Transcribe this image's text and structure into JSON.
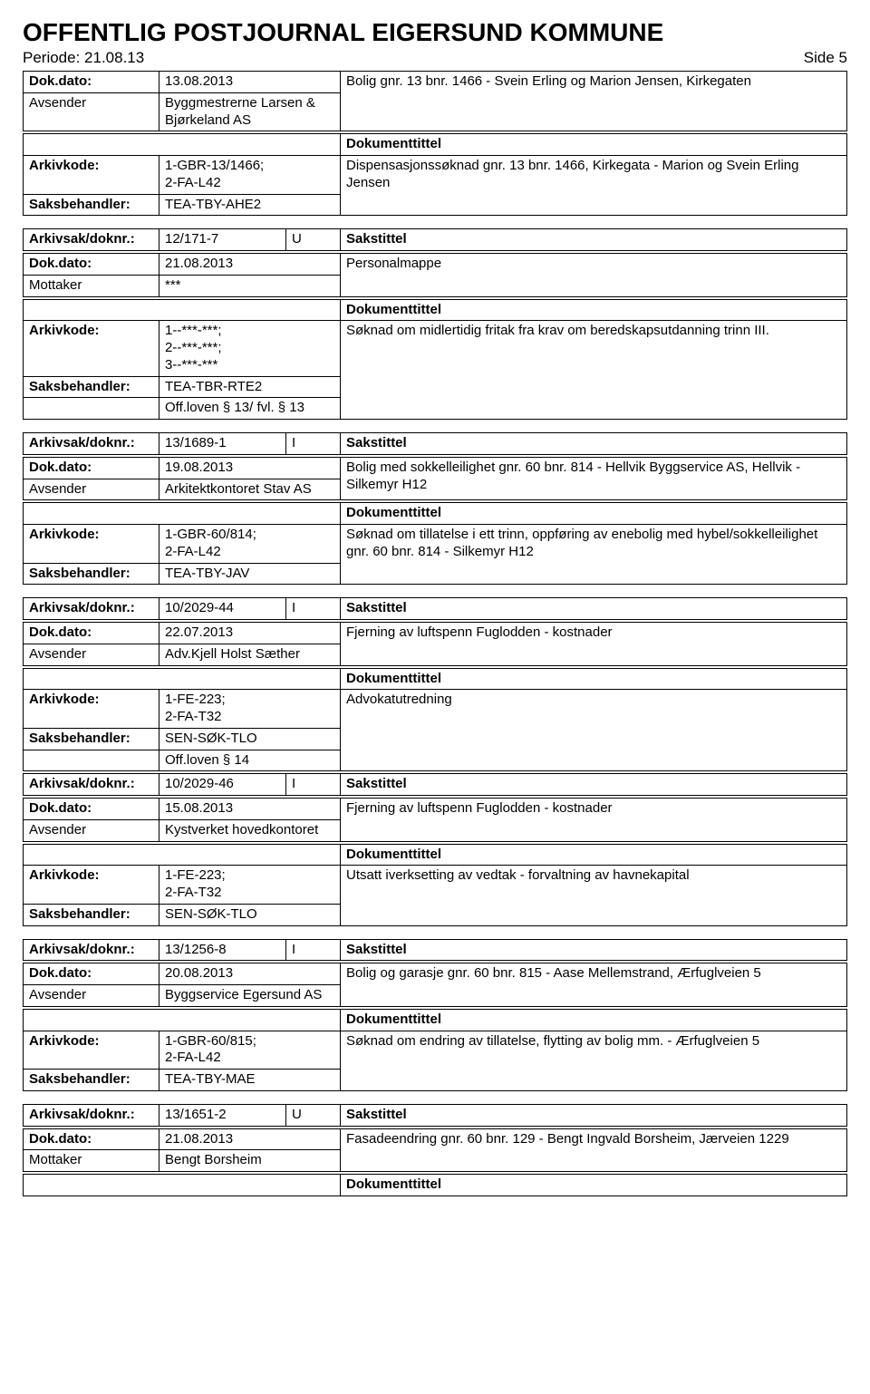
{
  "title": "OFFENTLIG POSTJOURNAL EIGERSUND KOMMUNE",
  "periode_label": "Periode: 21.08.13",
  "side_label": "Side 5",
  "labels": {
    "dokdato": "Dok.dato:",
    "avsender": "Avsender",
    "mottaker": "Mottaker",
    "arkivkode": "Arkivkode:",
    "saksbehandler": "Saksbehandler:",
    "arkivsak": "Arkivsak/doknr.:",
    "sakstittel": "Sakstittel",
    "dokumenttittel": "Dokumenttittel"
  },
  "entries": [
    {
      "head": {
        "dokdato": "13.08.2013",
        "party_label": "Avsender",
        "party_value": "Byggmestrerne Larsen & Bjørkeland AS",
        "sakstittel_text": "Bolig gnr. 13 bnr. 1466 - Svein Erling og Marion Jensen,  Kirkegaten"
      },
      "arkivkode": "1-GBR-13/1466;\n2-FA-L42",
      "saksbehandler": "TEA-TBY-AHE2",
      "doktext": "Dispensasjonssøknad gnr. 13 bnr. 1466, Kirkegata - Marion og Svein Erling Jensen",
      "offloven": null
    },
    {
      "arkivsak": "12/171-7",
      "ui": "U",
      "dokdato": "21.08.2013",
      "party_label": "Mottaker",
      "party_value": "***",
      "sakstittel_text": "Personalmappe",
      "arkivkode": "1--***-***;\n2--***-***;\n3--***-***",
      "saksbehandler": "TEA-TBR-RTE2",
      "doktext": "Søknad om midlertidig fritak fra krav om beredskapsutdanning trinn III.",
      "offloven": "Off.loven § 13/ fvl. § 13"
    },
    {
      "arkivsak": "13/1689-1",
      "ui": "I",
      "dokdato": "19.08.2013",
      "party_label": "Avsender",
      "party_value": "Arkitektkontoret Stav AS",
      "sakstittel_text": "Bolig med sokkelleilighet  gnr. 60 bnr. 814 - Hellvik Byggservice AS, Hellvik - Silkemyr H12",
      "arkivkode": "1-GBR-60/814;\n2-FA-L42",
      "saksbehandler": "TEA-TBY-JAV",
      "doktext": "Søknad om tillatelse i ett trinn, oppføring av enebolig med hybel/sokkelleilighet gnr. 60 bnr. 814 - Silkemyr H12",
      "offloven": null
    },
    {
      "arkivsak": "10/2029-44",
      "ui": "I",
      "dokdato": "22.07.2013",
      "party_label": "Avsender",
      "party_value": "Adv.Kjell Holst Sæther",
      "sakstittel_text": "Fjerning av luftspenn Fuglodden - kostnader",
      "arkivkode": "1-FE-223;\n2-FA-T32",
      "saksbehandler": "SEN-SØK-TLO",
      "doktext": "Advokatutredning",
      "offloven": "Off.loven § 14"
    },
    {
      "arkivsak": "10/2029-46",
      "ui": "I",
      "dokdato": "15.08.2013",
      "party_label": "Avsender",
      "party_value": "Kystverket hovedkontoret",
      "sakstittel_text": "Fjerning av luftspenn Fuglodden - kostnader",
      "arkivkode": "1-FE-223;\n2-FA-T32",
      "saksbehandler": "SEN-SØK-TLO",
      "doktext": "Utsatt iverksetting av vedtak - forvaltning av havnekapital",
      "offloven": null
    },
    {
      "arkivsak": "13/1256-8",
      "ui": "I",
      "dokdato": "20.08.2013",
      "party_label": "Avsender",
      "party_value": "Byggservice Egersund AS",
      "sakstittel_text": "Bolig og garasje gnr. 60 bnr. 815 - Aase Mellemstrand, Ærfuglveien 5",
      "arkivkode": "1-GBR-60/815;\n2-FA-L42",
      "saksbehandler": "TEA-TBY-MAE",
      "doktext": "Søknad om endring av tillatelse, flytting av bolig mm. - Ærfuglveien 5",
      "offloven": null
    },
    {
      "arkivsak": "13/1651-2",
      "ui": "U",
      "dokdato": "21.08.2013",
      "party_label": "Mottaker",
      "party_value": "Bengt Borsheim",
      "sakstittel_text": "Fasadeendring gnr. 60 bnr. 129 - Bengt Ingvald Borsheim, Jærveien 1229",
      "truncated": true
    }
  ]
}
